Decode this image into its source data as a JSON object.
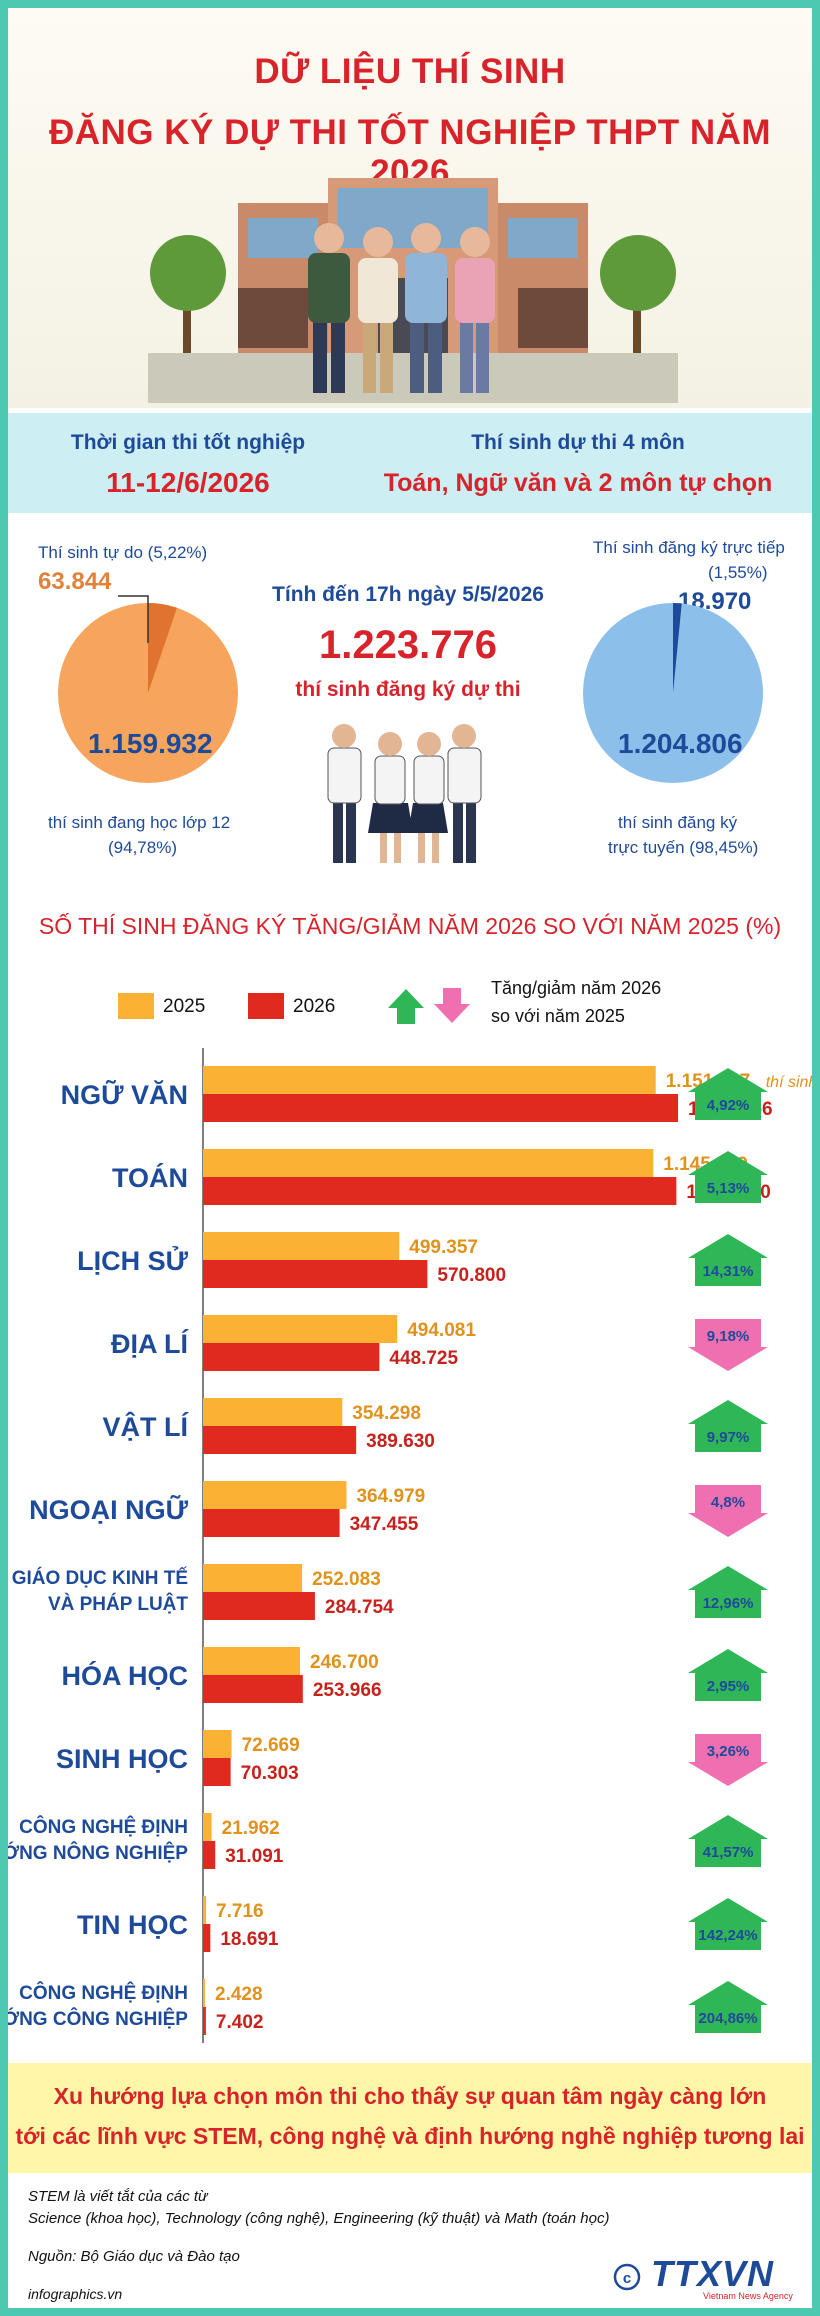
{
  "header": {
    "title_line1": "DỮ LIỆU THÍ SINH",
    "title_line2": "ĐĂNG KÝ DỰ THI TỐT NGHIỆP THPT NĂM 2026"
  },
  "info_band": {
    "left_label": "Thời gian thi tốt nghiệp",
    "left_value": "11-12/6/2026",
    "right_label": "Thí sinh dự thi 4 môn",
    "right_value": "Toán, Ngữ văn và 2 môn tự chọn"
  },
  "stats": {
    "left_small_label": "Thí sinh tự do (5,22%)",
    "left_small_value": "63.844",
    "left_big_value": "1.159.932",
    "left_big_label_1": "thí sinh đang học lớp 12",
    "left_big_label_2": "(94,78%)",
    "center_date": "Tính đến 17h ngày 5/5/2026",
    "center_total": "1.223.776",
    "center_sub": "thí sinh đăng ký dự thi",
    "right_small_label_1": "Thí sinh đăng ký trực tiếp",
    "right_small_label_2": "(1,55%)",
    "right_small_value": "18.970",
    "right_big_value": "1.204.806",
    "right_big_label_1": "thí sinh đăng ký",
    "right_big_label_2": "trực tuyến (98,45%)",
    "left_pie_share": 0.0522,
    "right_pie_share": 0.0155
  },
  "chart_title": "SỐ THÍ SINH ĐĂNG KÝ TĂNG/GIẢM NĂM 2026 SO VỚI NĂM 2025 (%)",
  "legend": {
    "y2025": "2025",
    "y2026": "2026",
    "change_line1": "Tăng/giảm năm 2026",
    "change_line2": "so với năm 2025"
  },
  "colors": {
    "y2025": "#fbb133",
    "y2026": "#e02a1f",
    "increase": "#2fb656",
    "decrease": "#ef6fb0",
    "title_red": "#d8232a",
    "navy": "#1e4a9a"
  },
  "chart_data": {
    "type": "bar",
    "orientation": "horizontal",
    "unit_note": "thí sinh",
    "categories": [
      [
        "NGỮ VĂN"
      ],
      [
        "TOÁN"
      ],
      [
        "LỊCH SỬ"
      ],
      [
        "ĐỊA LÍ"
      ],
      [
        "VẬT LÍ"
      ],
      [
        "NGOẠI NGỮ"
      ],
      [
        "GIÁO DỤC KINH TẾ",
        "VÀ PHÁP LUẬT"
      ],
      [
        "HÓA HỌC"
      ],
      [
        "SINH HỌC"
      ],
      [
        "CÔNG NGHỆ ĐỊNH",
        "HƯỚNG NÔNG NGHIỆP"
      ],
      [
        "TIN HỌC"
      ],
      [
        "CÔNG NGHỆ ĐỊNH",
        "HƯỚNG CÔNG NGHIỆP"
      ]
    ],
    "series": [
      {
        "name": "2025",
        "values": [
          1151687,
          1145449,
          499357,
          494081,
          354298,
          364979,
          252083,
          246700,
          72669,
          21962,
          7716,
          2428
        ],
        "labels": [
          "1.151.687",
          "1.145.449",
          "499.357",
          "494.081",
          "354.298",
          "364.979",
          "252.083",
          "246.700",
          "72.669",
          "21.962",
          "7.716",
          "2.428"
        ]
      },
      {
        "name": "2026",
        "values": [
          1208356,
          1204180,
          570800,
          448725,
          389630,
          347455,
          284754,
          253966,
          70303,
          31091,
          18691,
          7402
        ],
        "labels": [
          "1.208.356",
          "1.204.180",
          "570.800",
          "448.725",
          "389.630",
          "347.455",
          "284.754",
          "253.966",
          "70.303",
          "31.091",
          "18.691",
          "7.402"
        ]
      }
    ],
    "change_labels": [
      "4,92%",
      "5,13%",
      "14,31%",
      "9,18%",
      "9,97%",
      "4,8%",
      "12,96%",
      "2,95%",
      "3,26%",
      "41,57%",
      "142,24%",
      "204,86%"
    ],
    "change_direction": [
      "up",
      "up",
      "up",
      "down",
      "up",
      "down",
      "up",
      "up",
      "down",
      "up",
      "up",
      "up"
    ]
  },
  "note": {
    "line1": "Xu hướng lựa chọn môn thi cho thấy sự quan tâm ngày càng lớn",
    "line2": "tới các lĩnh vực STEM, công nghệ và định hướng nghề nghiệp tương lai"
  },
  "footer": {
    "stem_1": "STEM là viết tắt của các từ",
    "stem_2": "Science (khoa học), Technology (công nghệ), Engineering (kỹ thuật) và Math (toán học)",
    "source": "Nguồn: Bộ Giáo dục và Đào tạo",
    "site": "infographics.vn",
    "logo_text": "TTXVN",
    "logo_sub": "Vietnam News Agency"
  }
}
